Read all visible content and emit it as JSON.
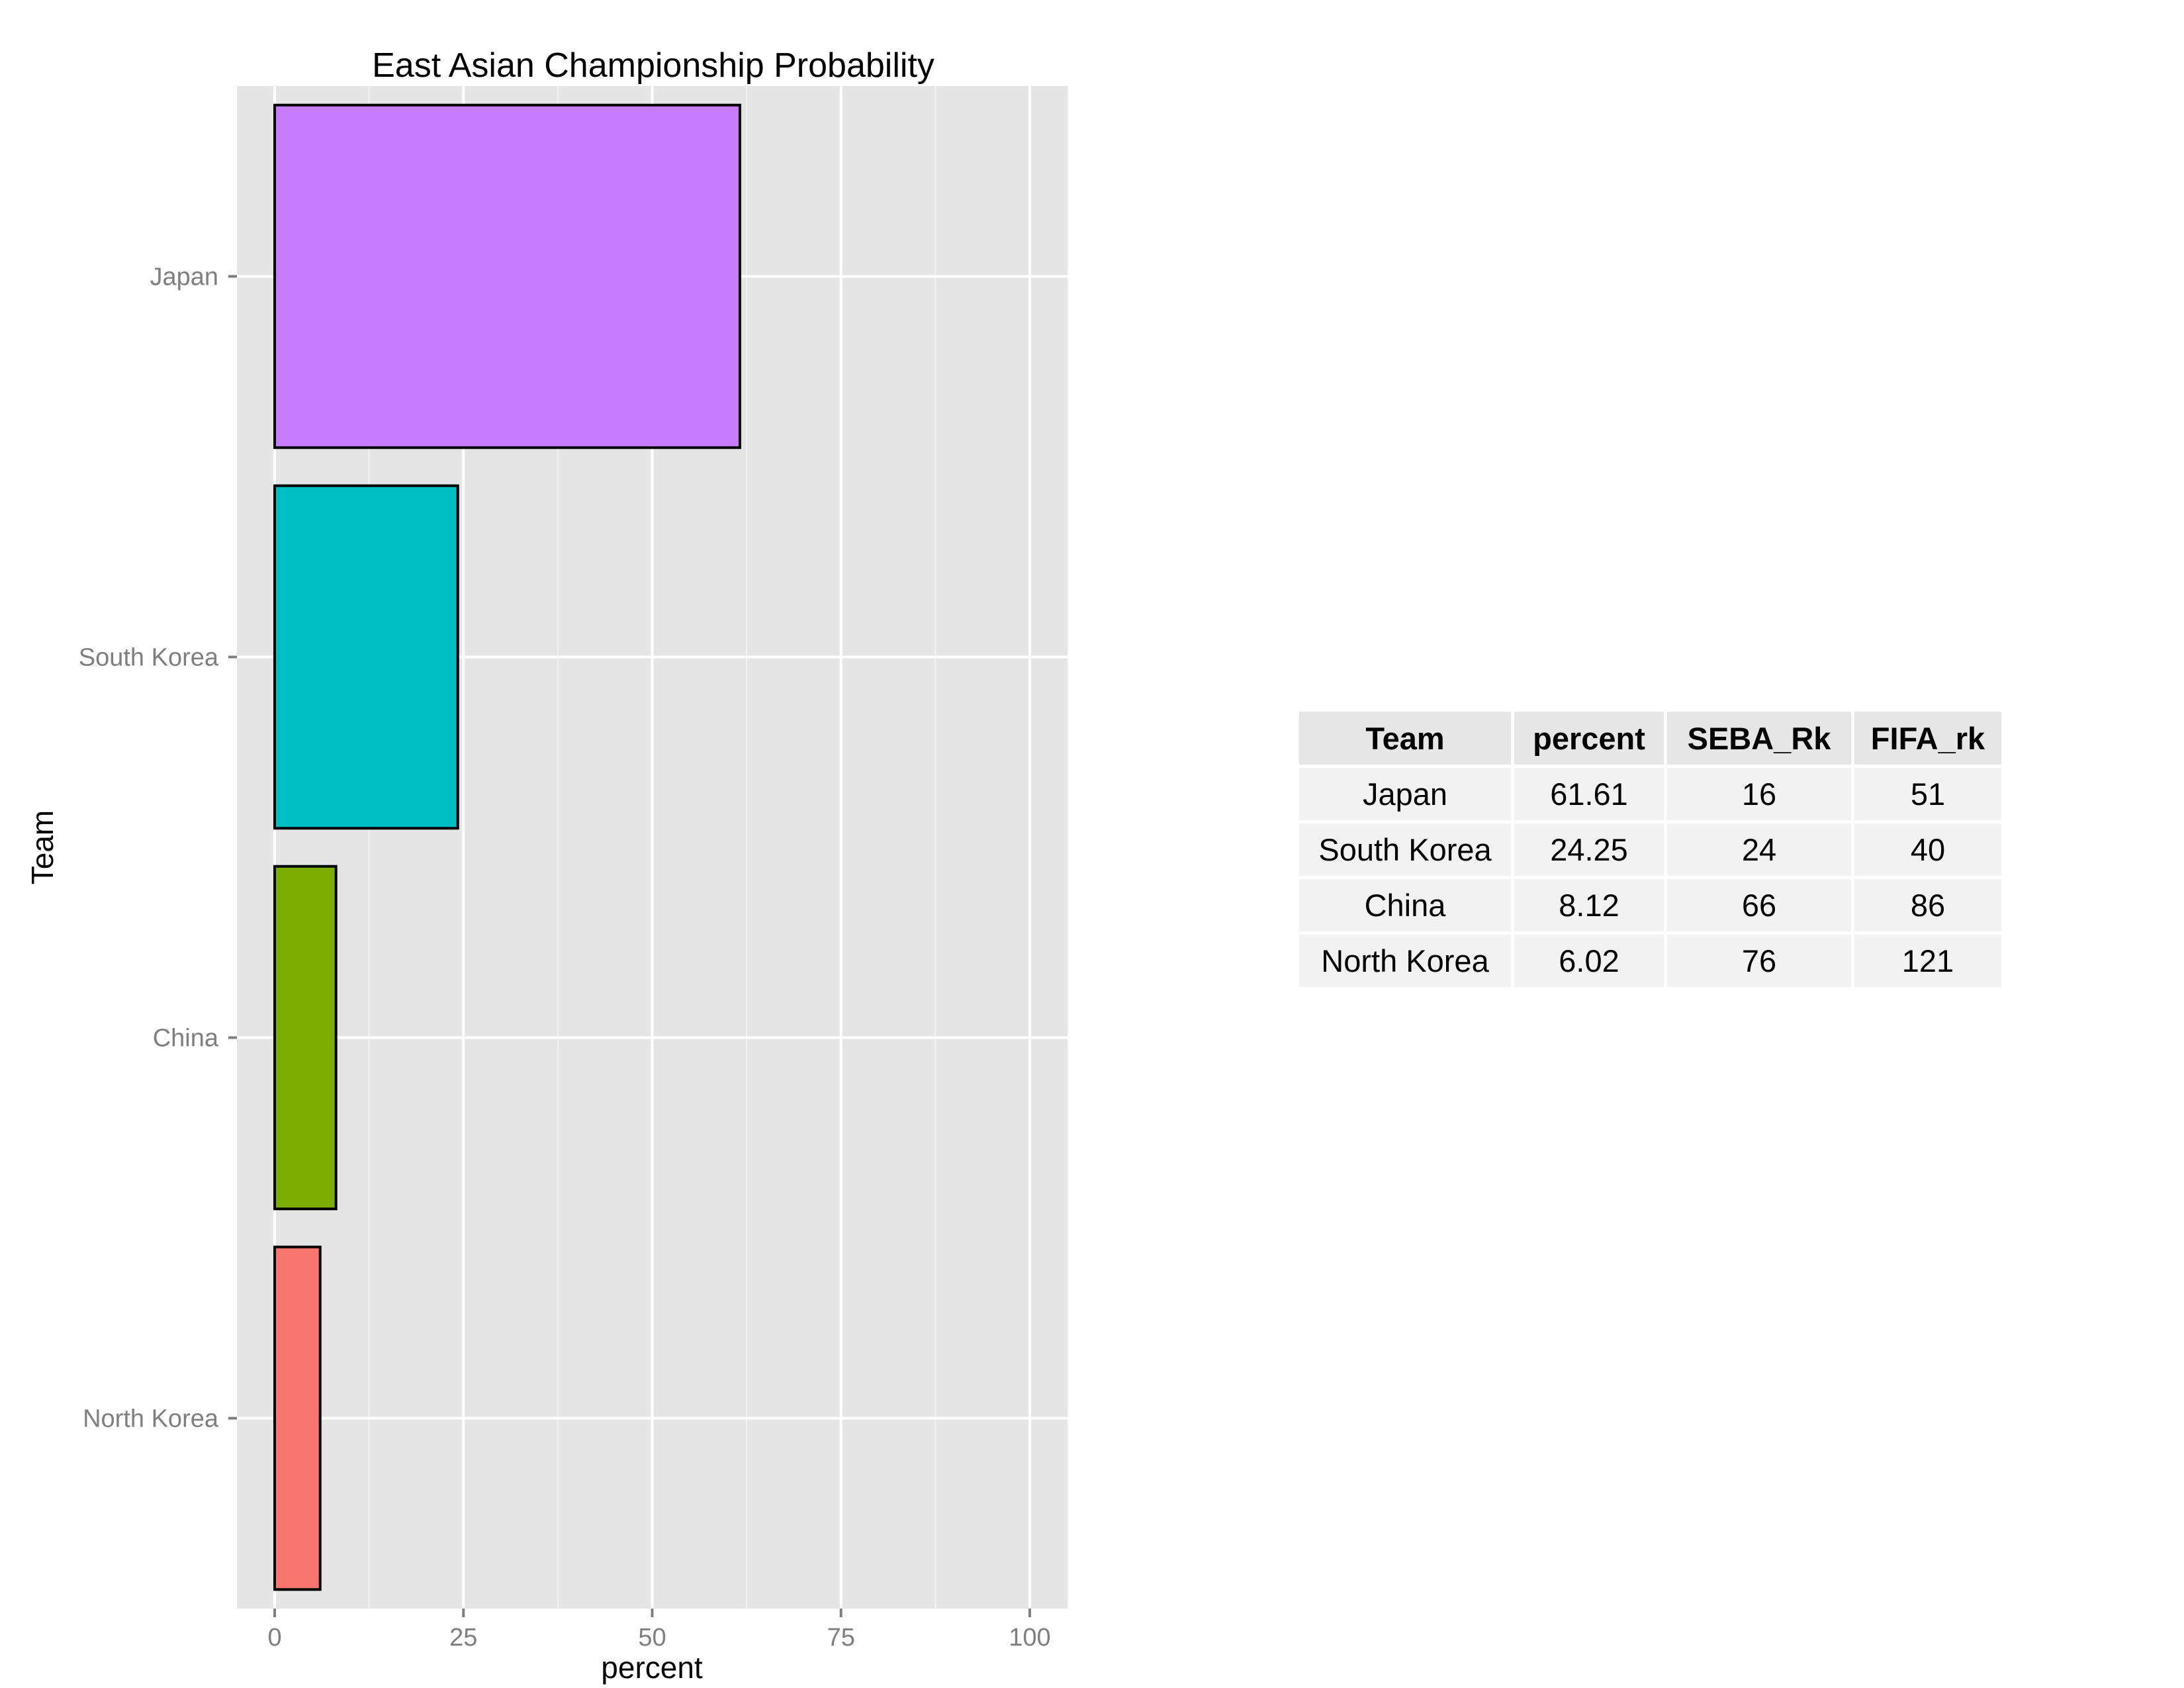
{
  "chart_data": {
    "type": "bar",
    "orientation": "horizontal",
    "title": "East Asian Championship Probability",
    "xlabel": "percent",
    "ylabel": "Team",
    "categories": [
      "North Korea",
      "China",
      "South Korea",
      "Japan"
    ],
    "values": [
      6.02,
      8.12,
      24.25,
      61.61
    ],
    "colors": [
      "#F8766D",
      "#7CAE00",
      "#00BFC4",
      "#C77CFF"
    ],
    "bar_outline": "#000000",
    "xlim": [
      -5,
      105
    ],
    "xticks": [
      0,
      25,
      50,
      75,
      100
    ],
    "xtick_labels": [
      "0",
      "25",
      "50",
      "75",
      "100"
    ],
    "grid": true,
    "panel_background": "#E5E5E5",
    "legend": "none"
  },
  "table": {
    "headers": [
      "Team",
      "percent",
      "SEBA_Rk",
      "FIFA_rk"
    ],
    "rows": [
      [
        "Japan",
        "61.61",
        "16",
        "51"
      ],
      [
        "South Korea",
        "24.25",
        "24",
        "40"
      ],
      [
        "China",
        "8.12",
        "66",
        "86"
      ],
      [
        "North Korea",
        "6.02",
        "76",
        "121"
      ]
    ]
  }
}
